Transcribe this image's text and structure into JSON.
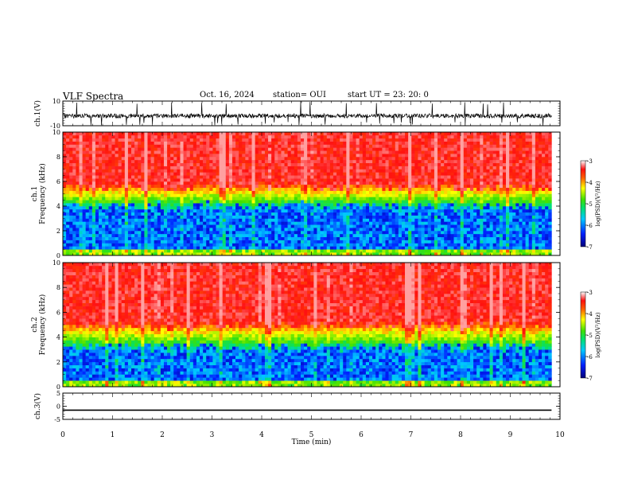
{
  "header": {
    "title": "VLF Spectra",
    "date": "Oct. 16, 2024",
    "station": "station= OUI",
    "start": "start  UT  =   23: 20: 0"
  },
  "chart_data": [
    {
      "type": "line",
      "id": "ch1-waveform",
      "ylabel": "ch.1(V)",
      "ylim": [
        -10,
        10
      ],
      "yticks": [
        10,
        -10
      ],
      "xlim": [
        0,
        10
      ],
      "description_values": {
        "baseline": -2,
        "spike_low": -10,
        "spike_high": 10
      },
      "color": "#000000"
    },
    {
      "type": "heatmap",
      "id": "ch1-spectrogram",
      "ylabel": "ch.1 Frequency (kHz)",
      "ylim": [
        0,
        10
      ],
      "yticks": [
        0,
        2,
        4,
        6,
        8,
        10
      ],
      "xlim": [
        0,
        9.83
      ],
      "colorbar": {
        "label": "log(PSD)(V²/Hz)",
        "range": [
          -7,
          -3
        ],
        "ticks": [
          -3,
          -4,
          -5,
          -6,
          -7
        ]
      },
      "red_boundary_khz": 5.6,
      "green_band_khz": [
        4.0,
        5.8
      ]
    },
    {
      "type": "heatmap",
      "id": "ch2-spectrogram",
      "ylabel": "ch.2 Frequency (kHz)",
      "ylim": [
        0,
        10
      ],
      "yticks": [
        0,
        2,
        4,
        6,
        8,
        10
      ],
      "xlim": [
        0,
        9.83
      ],
      "colorbar": {
        "label": "log(PSD)(V²/Hz)",
        "range": [
          -7,
          -3
        ],
        "ticks": [
          -3,
          -4,
          -5,
          -6,
          -7
        ]
      },
      "red_boundary_khz": 5.0,
      "green_band_khz": [
        3.2,
        5.2
      ]
    },
    {
      "type": "line",
      "id": "ch3-waveform",
      "ylabel": "ch.3(V)",
      "ylim": [
        -5,
        5
      ],
      "yticks": [
        5,
        0,
        -5
      ],
      "xlim": [
        0,
        10
      ],
      "value": -1.5,
      "color": "#000000"
    }
  ],
  "xaxis": {
    "label": "Time (min)",
    "ticks": [
      "0",
      "1",
      "2",
      "3",
      "4",
      "5",
      "6",
      "7",
      "8",
      "9",
      "10"
    ],
    "range": [
      0,
      10
    ]
  }
}
